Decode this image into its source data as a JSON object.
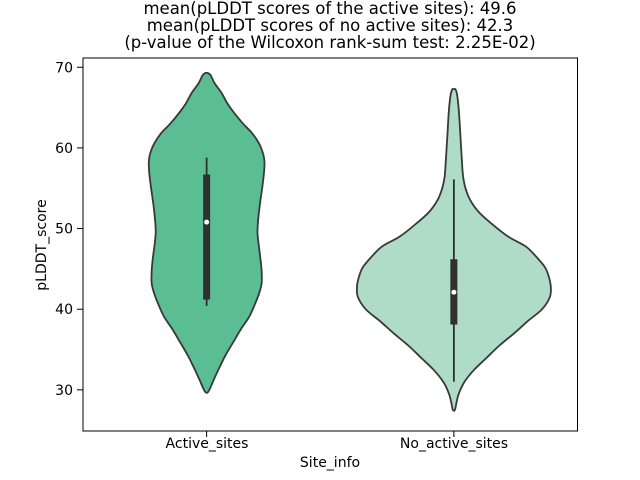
{
  "chart_data": {
    "type": "violin",
    "title_lines": [
      "mean(pLDDT scores of the active sites): 49.6",
      "mean(pLDDT scores of no active sites): 42.3",
      "(p-value of the Wilcoxon rank-sum test: 2.25E-02)"
    ],
    "stats": {
      "mean_active_sites": 49.6,
      "mean_no_active_sites": 42.3,
      "wilcoxon_rank_sum_p_value": "2.25E-02"
    },
    "xlabel": "Site_info",
    "ylabel": "pLDDT_score",
    "categories": [
      "Active_sites",
      "No_active_sites"
    ],
    "yticks": [
      30,
      40,
      50,
      60,
      70
    ],
    "ylim": [
      24.9,
      71.15
    ],
    "xlim": [
      -0.5,
      1.5
    ],
    "grid": false,
    "legend": false,
    "axis_color": "#000000",
    "edge_color": "#383838",
    "box_color": "#303030",
    "median_dot_color": "#ffffff",
    "series": [
      {
        "name": "Active_sites",
        "x": 0,
        "fill": "#5bbd92",
        "max_halfwidth": 0.234,
        "box": {
          "whisker_low": 40.4,
          "q1": 41.2,
          "median": 50.8,
          "q3": 56.7,
          "whisker_high": 58.8
        },
        "violin_range": [
          29.7,
          69.3
        ],
        "profile": [
          [
            69.3,
            0.02
          ],
          [
            69.0,
            0.07
          ],
          [
            68.0,
            0.14
          ],
          [
            66.8,
            0.26
          ],
          [
            65.5,
            0.36
          ],
          [
            64.3,
            0.48
          ],
          [
            63.0,
            0.63
          ],
          [
            61.8,
            0.79
          ],
          [
            60.5,
            0.91
          ],
          [
            59.2,
            0.98
          ],
          [
            58.2,
            1.0
          ],
          [
            56.8,
            0.99
          ],
          [
            55.0,
            0.96
          ],
          [
            53.0,
            0.92
          ],
          [
            51.0,
            0.89
          ],
          [
            49.5,
            0.88
          ],
          [
            48.0,
            0.9
          ],
          [
            46.3,
            0.93
          ],
          [
            44.8,
            0.95
          ],
          [
            43.2,
            0.95
          ],
          [
            41.8,
            0.9
          ],
          [
            40.2,
            0.81
          ],
          [
            39.0,
            0.73
          ],
          [
            37.5,
            0.59
          ],
          [
            35.8,
            0.45
          ],
          [
            34.2,
            0.32
          ],
          [
            32.6,
            0.21
          ],
          [
            31.2,
            0.12
          ],
          [
            30.2,
            0.06
          ],
          [
            29.7,
            0.02
          ]
        ]
      },
      {
        "name": "No_active_sites",
        "x": 1,
        "fill": "#aedcc6",
        "max_halfwidth": 0.392,
        "box": {
          "whisker_low": 31.0,
          "q1": 38.1,
          "median": 42.1,
          "q3": 46.2,
          "whisker_high": 56.1
        },
        "violin_range": [
          27.5,
          67.3
        ],
        "profile": [
          [
            67.3,
            0.015
          ],
          [
            66.8,
            0.03
          ],
          [
            65.5,
            0.045
          ],
          [
            64.0,
            0.055
          ],
          [
            62.0,
            0.065
          ],
          [
            60.0,
            0.075
          ],
          [
            58.0,
            0.085
          ],
          [
            56.5,
            0.095
          ],
          [
            55.0,
            0.12
          ],
          [
            53.5,
            0.17
          ],
          [
            52.0,
            0.26
          ],
          [
            50.5,
            0.4
          ],
          [
            49.0,
            0.56
          ],
          [
            47.8,
            0.74
          ],
          [
            46.5,
            0.85
          ],
          [
            45.2,
            0.94
          ],
          [
            44.0,
            0.98
          ],
          [
            42.8,
            1.0
          ],
          [
            41.5,
            0.99
          ],
          [
            40.0,
            0.91
          ],
          [
            38.5,
            0.76
          ],
          [
            37.0,
            0.62
          ],
          [
            35.5,
            0.47
          ],
          [
            34.0,
            0.34
          ],
          [
            32.5,
            0.21
          ],
          [
            31.0,
            0.11
          ],
          [
            29.5,
            0.05
          ],
          [
            28.3,
            0.025
          ],
          [
            27.5,
            0.01
          ]
        ]
      }
    ]
  }
}
